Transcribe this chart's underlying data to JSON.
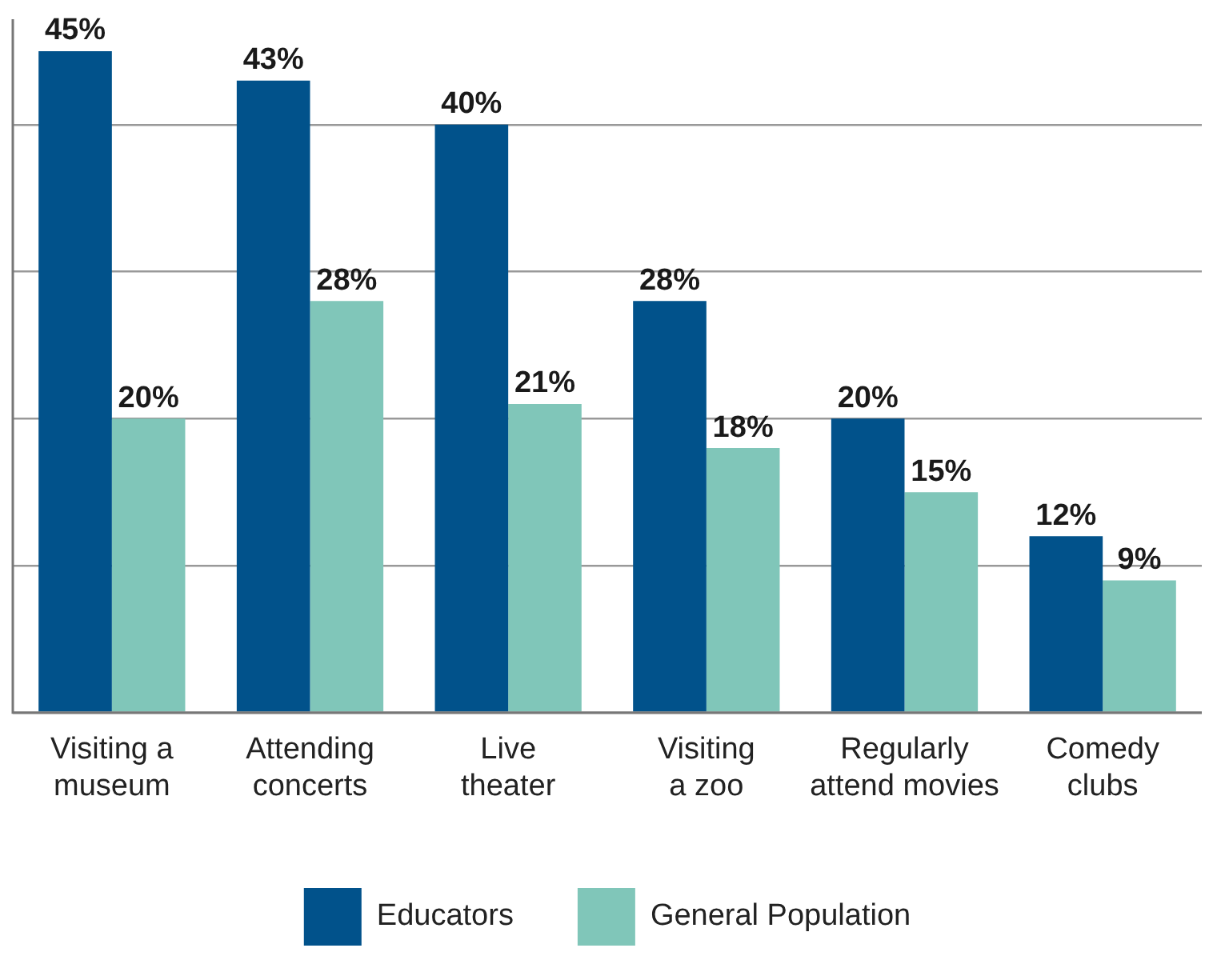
{
  "chart_data": {
    "type": "bar",
    "categories": [
      "Visiting a\nmuseum",
      "Attending\nconcerts",
      "Live\ntheater",
      "Visiting\na zoo",
      "Regularly\nattend movies",
      "Comedy\nclubs"
    ],
    "series": [
      {
        "name": "Educators",
        "color": "#01528b",
        "values": [
          45,
          43,
          40,
          28,
          20,
          12
        ],
        "value_labels": [
          "45%",
          "43%",
          "40%",
          "28%",
          "20%",
          "12%"
        ]
      },
      {
        "name": "General Population",
        "color": "#80c6b9",
        "values": [
          20,
          28,
          21,
          18,
          15,
          9
        ],
        "value_labels": [
          "20%",
          "28%",
          "21%",
          "18%",
          "15%",
          "9%"
        ]
      }
    ],
    "ylim": [
      0,
      45
    ],
    "yticks": [
      {
        "value": 0,
        "label": null
      },
      {
        "value": 10,
        "label": null
      },
      {
        "value": 20,
        "label": null
      },
      {
        "value": 30,
        "label": null
      },
      {
        "value": 40,
        "label": null
      }
    ],
    "grid": "y",
    "legend": "bottom",
    "tick_labels": "x"
  }
}
